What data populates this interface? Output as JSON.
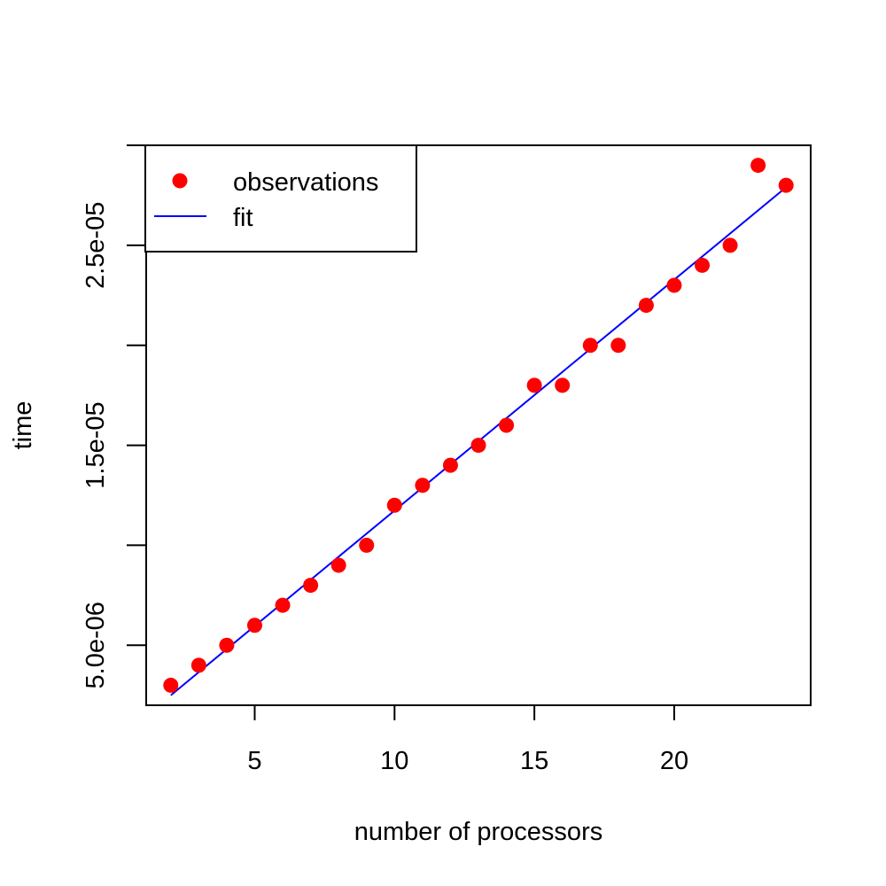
{
  "chart_data": {
    "type": "scatter",
    "xlabel": "number of processors",
    "ylabel": "time",
    "xlim": [
      1.12,
      24.88
    ],
    "ylim": [
      2e-06,
      3e-05
    ],
    "x_ticks": [
      5,
      10,
      15,
      20
    ],
    "x_tick_labels": [
      "5",
      "10",
      "15",
      "20"
    ],
    "y_ticks": [
      5e-06,
      1e-05,
      1.5e-05,
      2e-05,
      2.5e-05,
      3e-05
    ],
    "y_tick_labels": [
      "5.0e-06",
      "",
      "1.5e-05",
      "",
      "2.5e-05",
      ""
    ],
    "grid": false,
    "legend_position": "top-left",
    "series": [
      {
        "name": "observations",
        "kind": "points",
        "color": "#ff0000",
        "x": [
          2,
          3,
          4,
          5,
          6,
          7,
          8,
          9,
          10,
          11,
          12,
          13,
          14,
          15,
          16,
          17,
          18,
          19,
          20,
          21,
          22,
          23,
          24
        ],
        "y": [
          3e-06,
          4e-06,
          5e-06,
          6e-06,
          7e-06,
          8e-06,
          9e-06,
          1e-05,
          1.2e-05,
          1.3e-05,
          1.4e-05,
          1.5e-05,
          1.6e-05,
          1.8e-05,
          1.8e-05,
          2e-05,
          2e-05,
          2.2e-05,
          2.3e-05,
          2.4e-05,
          2.5e-05,
          2.9e-05,
          2.8e-05
        ]
      },
      {
        "name": "fit",
        "kind": "line",
        "color": "#0000ff",
        "x": [
          2,
          24
        ],
        "y": [
          2.5e-06,
          2.79e-05
        ]
      }
    ]
  }
}
